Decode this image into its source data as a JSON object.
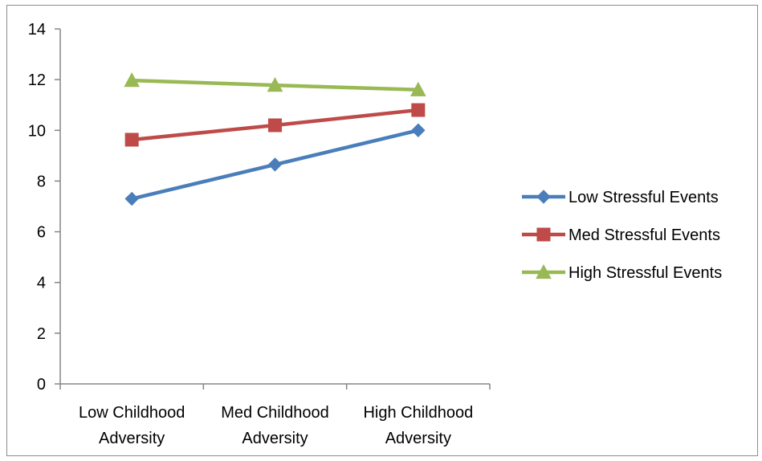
{
  "chart_data": {
    "type": "line",
    "title": "",
    "xlabel": "",
    "ylabel": "",
    "categories": [
      [
        "Low Childhood",
        "Adversity"
      ],
      [
        "Med Childhood",
        "Adversity"
      ],
      [
        "High Childhood",
        "Adversity"
      ]
    ],
    "ylim": [
      0,
      14
    ],
    "yticks": [
      0,
      2,
      4,
      6,
      8,
      10,
      12,
      14
    ],
    "grid": false,
    "legend_position": "right",
    "series": [
      {
        "name": "Low Stressful Events",
        "values": [
          7.3,
          8.65,
          10.0
        ],
        "color": "#4a7ebb",
        "marker": "diamond"
      },
      {
        "name": "Med Stressful Events",
        "values": [
          9.63,
          10.2,
          10.8
        ],
        "color": "#be4b48",
        "marker": "square"
      },
      {
        "name": "High Stressful Events",
        "values": [
          11.97,
          11.78,
          11.6
        ],
        "color": "#98b954",
        "marker": "triangle"
      }
    ]
  }
}
